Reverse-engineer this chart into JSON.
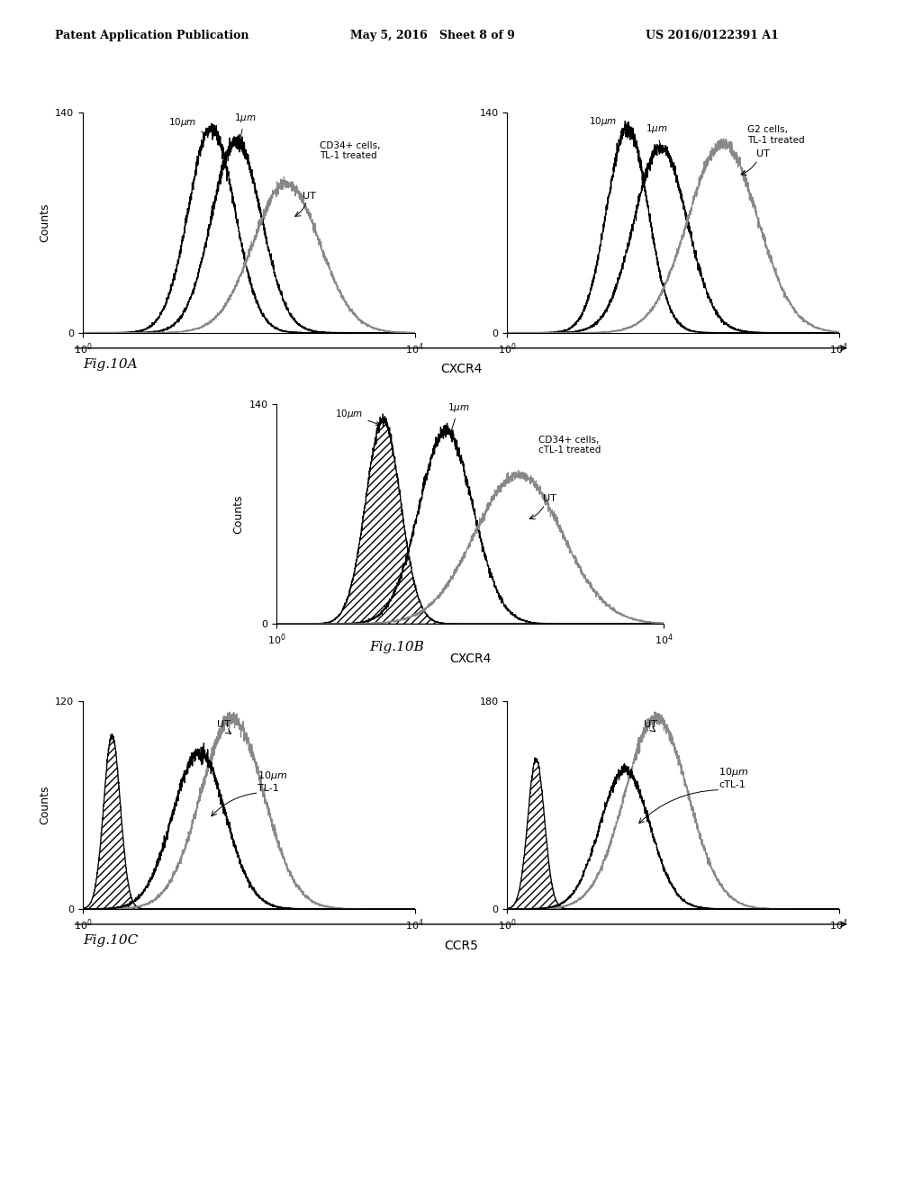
{
  "header_left": "Patent Application Publication",
  "header_mid": "May 5, 2016   Sheet 8 of 9",
  "header_right": "US 2016/0122391 A1",
  "fig_label_A": "Fig.10A",
  "fig_label_B": "Fig.10B",
  "fig_label_C": "Fig.10C",
  "background_color": "#ffffff",
  "text_color": "#000000"
}
